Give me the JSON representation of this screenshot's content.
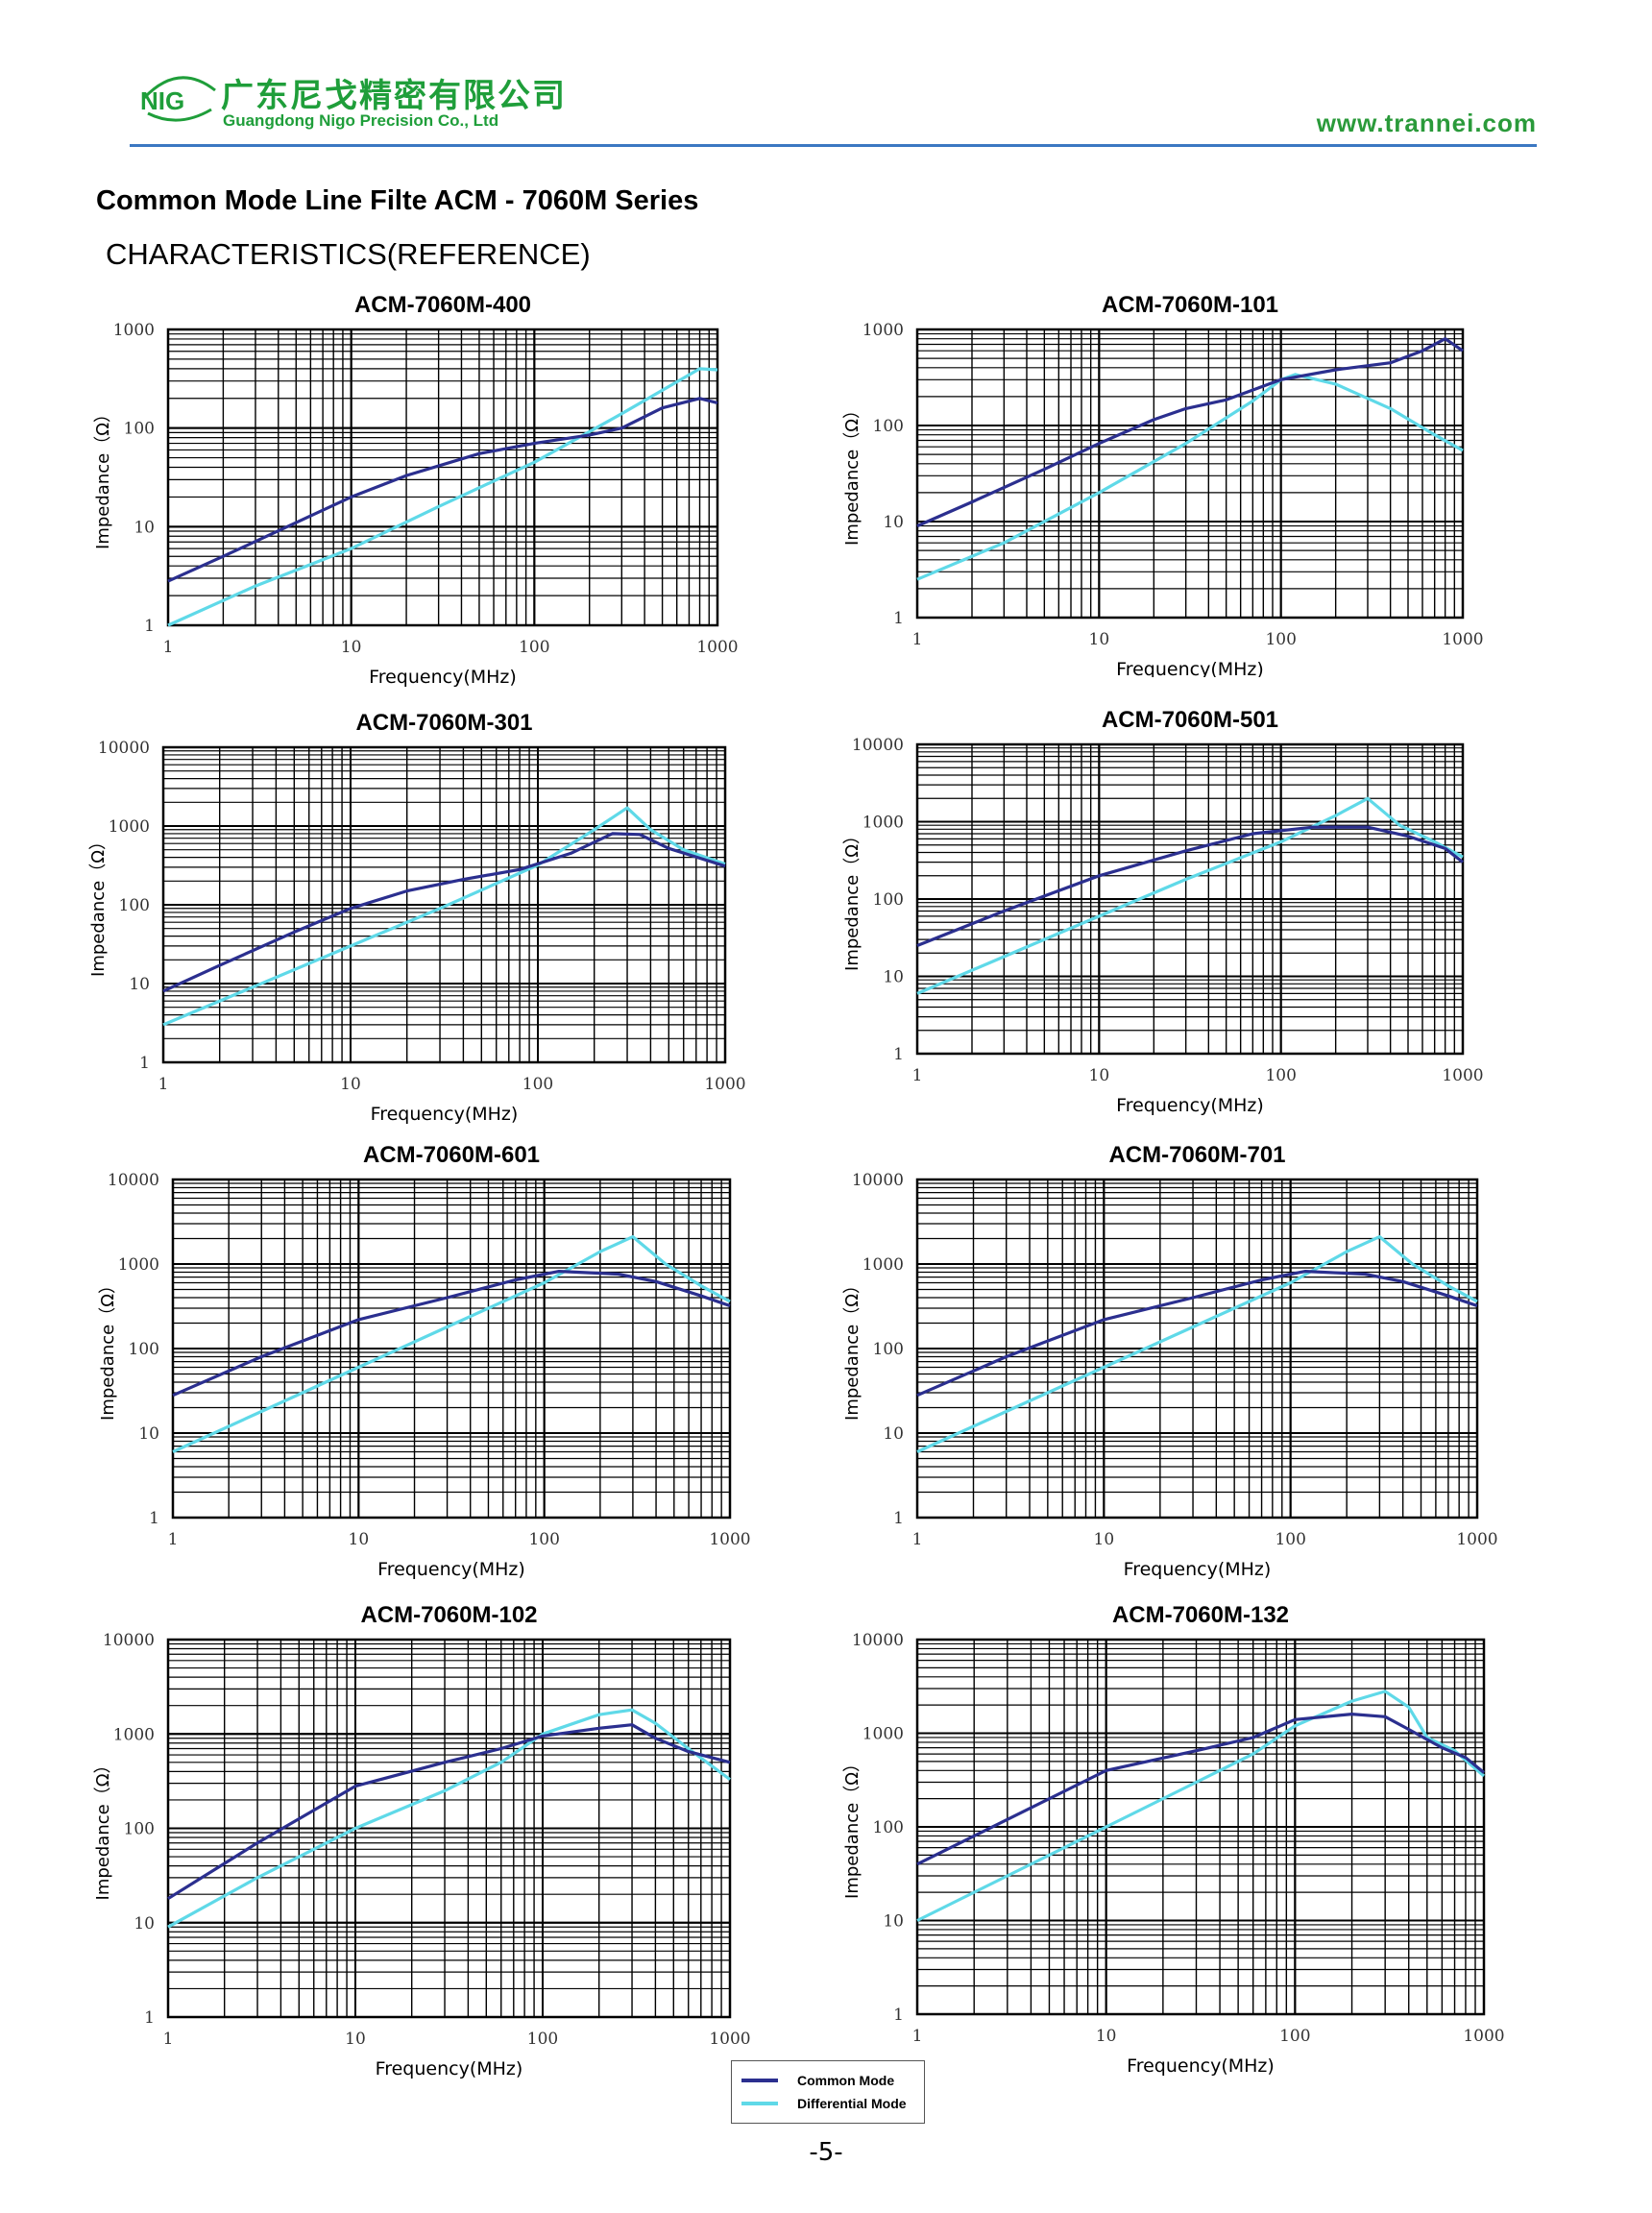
{
  "header": {
    "logo_text": "NIG",
    "company_cn": "广东尼戈精密有限公司",
    "company_en": "Guangdong Nigo Precision Co., Ltd",
    "website": "www.trannei.com",
    "brand_color": "#1f9e3a",
    "rule_color": "#3b78c2"
  },
  "title": "Common Mode Line Filte ACM - 7060M Series",
  "subtitle": "CHARACTERISTICS(REFERENCE)",
  "series_colors": {
    "common": "#2b2f8f",
    "differential": "#5fd9e8"
  },
  "legend": {
    "common": "Common Mode",
    "differential": "Differential Mode"
  },
  "page_number": "-5-",
  "chart_data": [
    {
      "type": "line",
      "title": "ACM-7060M-400",
      "xlabel": "Frequency(MHz)",
      "ylabel": "Impedance（Ω）",
      "xscale": "log",
      "yscale": "log",
      "xlim": [
        1,
        1000
      ],
      "ylim": [
        1,
        1000
      ],
      "yticks": [
        "1",
        "10",
        "100",
        "1000"
      ],
      "xticks": [
        "1",
        "10",
        "100",
        "1000"
      ],
      "series": [
        {
          "name": "Common Mode",
          "points": [
            [
              1,
              2.8
            ],
            [
              2,
              5
            ],
            [
              5,
              11
            ],
            [
              10,
              20
            ],
            [
              20,
              33
            ],
            [
              50,
              55
            ],
            [
              100,
              70
            ],
            [
              200,
              85
            ],
            [
              300,
              100
            ],
            [
              500,
              160
            ],
            [
              800,
              200
            ],
            [
              1000,
              180
            ]
          ]
        },
        {
          "name": "Differential Mode",
          "points": [
            [
              1,
              1
            ],
            [
              3,
              2.5
            ],
            [
              10,
              6
            ],
            [
              30,
              16
            ],
            [
              100,
              45
            ],
            [
              300,
              140
            ],
            [
              800,
              400
            ],
            [
              1000,
              390
            ]
          ]
        }
      ]
    },
    {
      "type": "line",
      "title": "ACM-7060M-101",
      "xlabel": "Frequency(MHz)",
      "ylabel": "Impedance（Ω）",
      "xscale": "log",
      "yscale": "log",
      "xlim": [
        1,
        1000
      ],
      "ylim": [
        1,
        1000
      ],
      "yticks": [
        "1",
        "10",
        "100",
        "1000"
      ],
      "xticks": [
        "1",
        "10",
        "100",
        "1000"
      ],
      "series": [
        {
          "name": "Common Mode",
          "points": [
            [
              1,
              9
            ],
            [
              2,
              16
            ],
            [
              5,
              35
            ],
            [
              10,
              65
            ],
            [
              20,
              115
            ],
            [
              30,
              150
            ],
            [
              50,
              185
            ],
            [
              100,
              300
            ],
            [
              200,
              380
            ],
            [
              400,
              450
            ],
            [
              600,
              600
            ],
            [
              800,
              800
            ],
            [
              1000,
              600
            ]
          ]
        },
        {
          "name": "Differential Mode",
          "points": [
            [
              1,
              2.5
            ],
            [
              3,
              6
            ],
            [
              10,
              20
            ],
            [
              30,
              65
            ],
            [
              70,
              180
            ],
            [
              100,
              300
            ],
            [
              120,
              340
            ],
            [
              200,
              270
            ],
            [
              400,
              150
            ],
            [
              700,
              80
            ],
            [
              1000,
              55
            ]
          ]
        }
      ]
    },
    {
      "type": "line",
      "title": "ACM-7060M-301",
      "xlabel": "Frequency(MHz)",
      "ylabel": "Impedance（Ω）",
      "xscale": "log",
      "yscale": "log",
      "xlim": [
        1,
        1000
      ],
      "ylim": [
        1,
        10000
      ],
      "yticks": [
        "1",
        "10",
        "100",
        "1000",
        "10000"
      ],
      "xticks": [
        "1",
        "10",
        "100",
        "1000"
      ],
      "series": [
        {
          "name": "Common Mode",
          "points": [
            [
              1,
              8
            ],
            [
              2,
              17
            ],
            [
              5,
              45
            ],
            [
              10,
              90
            ],
            [
              20,
              150
            ],
            [
              40,
              210
            ],
            [
              80,
              280
            ],
            [
              150,
              450
            ],
            [
              250,
              800
            ],
            [
              350,
              780
            ],
            [
              500,
              520
            ],
            [
              1000,
              310
            ]
          ]
        },
        {
          "name": "Differential Mode",
          "points": [
            [
              1,
              3
            ],
            [
              3,
              9
            ],
            [
              10,
              30
            ],
            [
              30,
              90
            ],
            [
              100,
              320
            ],
            [
              200,
              900
            ],
            [
              300,
              1700
            ],
            [
              400,
              900
            ],
            [
              600,
              500
            ],
            [
              1000,
              330
            ]
          ]
        }
      ]
    },
    {
      "type": "line",
      "title": "ACM-7060M-501",
      "xlabel": "Frequency(MHz)",
      "ylabel": "Impedance（Ω）",
      "xscale": "log",
      "yscale": "log",
      "xlim": [
        1,
        1000
      ],
      "ylim": [
        1,
        10000
      ],
      "yticks": [
        "1",
        "10",
        "100",
        "1000",
        "10000"
      ],
      "xticks": [
        "1",
        "10",
        "100",
        "1000"
      ],
      "series": [
        {
          "name": "Common Mode",
          "points": [
            [
              1,
              25
            ],
            [
              3,
              70
            ],
            [
              10,
              200
            ],
            [
              30,
              420
            ],
            [
              70,
              700
            ],
            [
              150,
              850
            ],
            [
              300,
              850
            ],
            [
              500,
              650
            ],
            [
              800,
              450
            ],
            [
              1000,
              300
            ]
          ]
        },
        {
          "name": "Differential Mode",
          "points": [
            [
              1,
              6
            ],
            [
              3,
              18
            ],
            [
              10,
              60
            ],
            [
              30,
              180
            ],
            [
              100,
              550
            ],
            [
              200,
              1200
            ],
            [
              300,
              2000
            ],
            [
              450,
              900
            ],
            [
              700,
              550
            ],
            [
              1000,
              350
            ]
          ]
        }
      ]
    },
    {
      "type": "line",
      "title": "ACM-7060M-601",
      "xlabel": "Frequency(MHz)",
      "ylabel": "Impedance（Ω）",
      "xscale": "log",
      "yscale": "log",
      "xlim": [
        1,
        1000
      ],
      "ylim": [
        1,
        10000
      ],
      "yticks": [
        "1",
        "10",
        "100",
        "1000",
        "10000"
      ],
      "xticks": [
        "1",
        "10",
        "100",
        "1000"
      ],
      "series": [
        {
          "name": "Common Mode",
          "points": [
            [
              1,
              28
            ],
            [
              3,
              80
            ],
            [
              10,
              220
            ],
            [
              30,
              400
            ],
            [
              70,
              650
            ],
            [
              120,
              820
            ],
            [
              250,
              760
            ],
            [
              400,
              620
            ],
            [
              700,
              420
            ],
            [
              1000,
              320
            ]
          ]
        },
        {
          "name": "Differential Mode",
          "points": [
            [
              1,
              6
            ],
            [
              3,
              18
            ],
            [
              10,
              60
            ],
            [
              30,
              180
            ],
            [
              100,
              600
            ],
            [
              200,
              1400
            ],
            [
              300,
              2100
            ],
            [
              450,
              1000
            ],
            [
              700,
              550
            ],
            [
              1000,
              360
            ]
          ]
        }
      ]
    },
    {
      "type": "line",
      "title": "ACM-7060M-701",
      "xlabel": "Frequency(MHz)",
      "ylabel": "Impedance（Ω）",
      "xscale": "log",
      "yscale": "log",
      "xlim": [
        1,
        1000
      ],
      "ylim": [
        1,
        10000
      ],
      "yticks": [
        "1",
        "10",
        "100",
        "1000",
        "10000"
      ],
      "xticks": [
        "1",
        "10",
        "100",
        "1000"
      ],
      "series": [
        {
          "name": "Common Mode",
          "points": [
            [
              1,
              28
            ],
            [
              3,
              80
            ],
            [
              10,
              220
            ],
            [
              30,
              400
            ],
            [
              70,
              650
            ],
            [
              120,
              820
            ],
            [
              250,
              760
            ],
            [
              400,
              620
            ],
            [
              700,
              420
            ],
            [
              1000,
              320
            ]
          ]
        },
        {
          "name": "Differential Mode",
          "points": [
            [
              1,
              6
            ],
            [
              3,
              18
            ],
            [
              10,
              60
            ],
            [
              30,
              180
            ],
            [
              100,
              600
            ],
            [
              200,
              1400
            ],
            [
              300,
              2100
            ],
            [
              450,
              1000
            ],
            [
              700,
              550
            ],
            [
              1000,
              360
            ]
          ]
        }
      ]
    },
    {
      "type": "line",
      "title": "ACM-7060M-102",
      "xlabel": "Frequency(MHz)",
      "ylabel": "Impedance（Ω）",
      "xscale": "log",
      "yscale": "log",
      "xlim": [
        1,
        1000
      ],
      "ylim": [
        1,
        10000
      ],
      "yticks": [
        "1",
        "10",
        "100",
        "1000",
        "10000"
      ],
      "xticks": [
        "1",
        "10",
        "100",
        "1000"
      ],
      "series": [
        {
          "name": "Common Mode",
          "points": [
            [
              1,
              18
            ],
            [
              3,
              70
            ],
            [
              10,
              280
            ],
            [
              30,
              500
            ],
            [
              60,
              700
            ],
            [
              100,
              950
            ],
            [
              200,
              1150
            ],
            [
              300,
              1250
            ],
            [
              400,
              900
            ],
            [
              600,
              650
            ],
            [
              1000,
              500
            ]
          ]
        },
        {
          "name": "Differential Mode",
          "points": [
            [
              1,
              9
            ],
            [
              3,
              30
            ],
            [
              10,
              100
            ],
            [
              30,
              250
            ],
            [
              60,
              500
            ],
            [
              100,
              1000
            ],
            [
              200,
              1600
            ],
            [
              300,
              1800
            ],
            [
              400,
              1300
            ],
            [
              600,
              700
            ],
            [
              1000,
              330
            ]
          ]
        }
      ]
    },
    {
      "type": "line",
      "title": "ACM-7060M-132",
      "xlabel": "Frequency(MHz)",
      "ylabel": "Impedance（Ω）",
      "xscale": "log",
      "yscale": "log",
      "xlim": [
        1,
        1000
      ],
      "ylim": [
        1,
        10000
      ],
      "yticks": [
        "1",
        "10",
        "100",
        "1000",
        "10000"
      ],
      "xticks": [
        "1",
        "10",
        "100",
        "1000"
      ],
      "series": [
        {
          "name": "Common Mode",
          "points": [
            [
              1,
              40
            ],
            [
              3,
              120
            ],
            [
              10,
              400
            ],
            [
              30,
              650
            ],
            [
              60,
              900
            ],
            [
              100,
              1400
            ],
            [
              200,
              1600
            ],
            [
              300,
              1500
            ],
            [
              400,
              1100
            ],
            [
              600,
              700
            ],
            [
              800,
              550
            ],
            [
              1000,
              380
            ]
          ]
        },
        {
          "name": "Differential Mode",
          "points": [
            [
              1,
              10
            ],
            [
              3,
              30
            ],
            [
              10,
              100
            ],
            [
              30,
              300
            ],
            [
              60,
              600
            ],
            [
              100,
              1200
            ],
            [
              200,
              2200
            ],
            [
              300,
              2800
            ],
            [
              400,
              1900
            ],
            [
              500,
              900
            ],
            [
              700,
              650
            ],
            [
              1000,
              350
            ]
          ]
        }
      ]
    }
  ]
}
